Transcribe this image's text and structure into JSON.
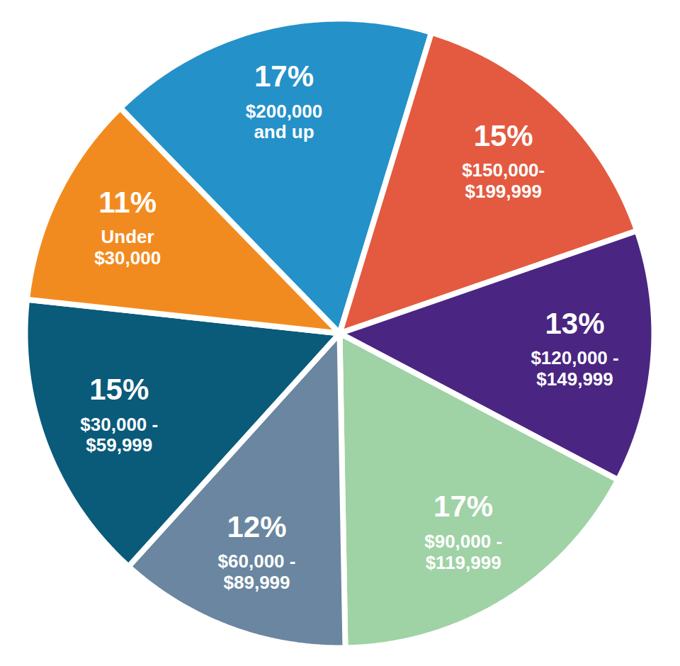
{
  "chart_data": {
    "type": "pie",
    "categories": [
      "$200,000\nand up",
      "$150,000-\n$199,999",
      "$120,000 -\n$149,999",
      "$90,000 -\n$119,999",
      "$60,000 -\n$89,999",
      "$30,000 -\n$59,999",
      "Under\n$30,000"
    ],
    "values": [
      17,
      15,
      13,
      17,
      12,
      15,
      11
    ],
    "value_labels": [
      "17%",
      "15%",
      "13%",
      "17%",
      "12%",
      "15%",
      "11%"
    ],
    "colors": [
      "#2591c9",
      "#e35a40",
      "#4a2682",
      "#9fd2a5",
      "#6a86a0",
      "#0a5a7a",
      "#f28b1f"
    ],
    "data_labels": true
  }
}
